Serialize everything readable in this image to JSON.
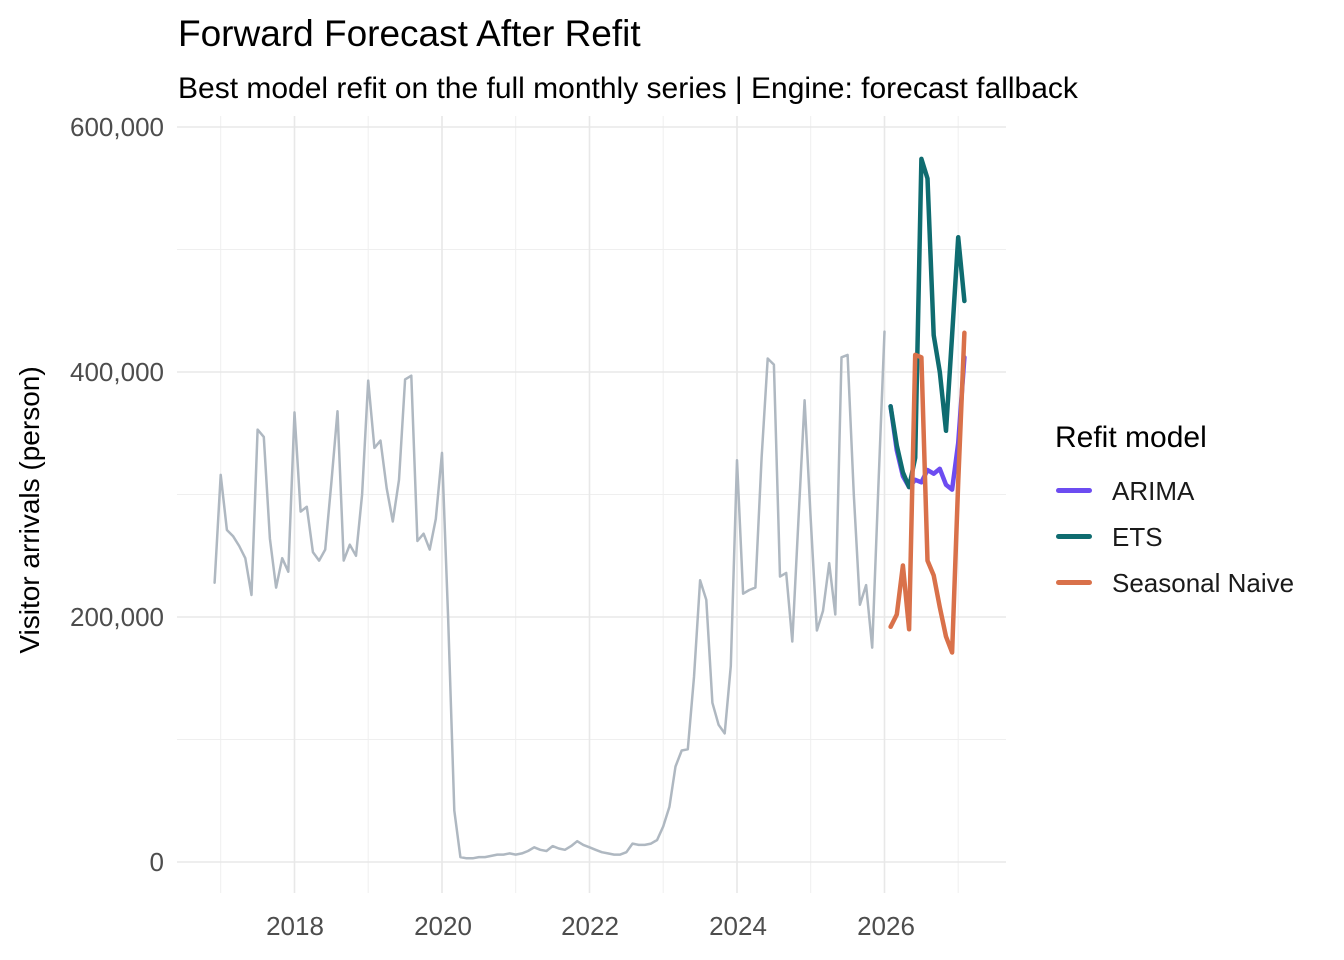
{
  "title": "Forward Forecast After Refit",
  "subtitle": "Best model refit on the full monthly series | Engine: forecast fallback",
  "y_axis": {
    "label": "Visitor arrivals (person)",
    "tick_labels": [
      "600,000",
      "400,000",
      "200,000",
      "0"
    ]
  },
  "x_axis": {
    "tick_labels": [
      "2018",
      "2020",
      "2022",
      "2024",
      "2026"
    ]
  },
  "legend": {
    "title": "Refit model",
    "entries": [
      {
        "label": "ARIMA",
        "color": "#6C4CF1"
      },
      {
        "label": "ETS",
        "color": "#0F6C70"
      },
      {
        "label": "Seasonal Naive",
        "color": "#D9714A"
      }
    ]
  },
  "chart_data": {
    "type": "line",
    "title": "Forward Forecast After Refit",
    "subtitle": "Best model refit on the full monthly series | Engine: forecast fallback",
    "xlabel": "",
    "ylabel": "Visitor arrivals (person)",
    "frequency": "monthly",
    "grid": true,
    "legend_position": "right",
    "x_ticks": [
      2018,
      2020,
      2022,
      2024,
      2026
    ],
    "x_minor_ticks": [
      2017,
      2019,
      2021,
      2023,
      2025,
      2027
    ],
    "y_ticks": [
      0,
      200000,
      400000,
      600000
    ],
    "y_minor_ticks": [
      100000,
      300000,
      500000
    ],
    "ylim": [
      0,
      620000
    ],
    "series": [
      {
        "name": "Historical monthly series",
        "role": "history",
        "color": "#AFB8C1",
        "start_month": "2016-12",
        "values_person": [
          228000,
          316000,
          271000,
          266000,
          258000,
          248000,
          218000,
          353000,
          347000,
          264000,
          224000,
          248000,
          237000,
          367000,
          286000,
          290000,
          253000,
          246000,
          255000,
          310000,
          368000,
          246000,
          259000,
          250000,
          300000,
          393000,
          338000,
          344000,
          305000,
          278000,
          312000,
          394000,
          397000,
          262000,
          268000,
          255000,
          280000,
          334000,
          200000,
          42000,
          4000,
          3000,
          3000,
          4000,
          4000,
          5000,
          6000,
          6000,
          7000,
          6000,
          7000,
          9000,
          12000,
          10000,
          9000,
          13000,
          11000,
          10000,
          13000,
          17000,
          14000,
          12000,
          10000,
          8000,
          7000,
          6000,
          6000,
          8000,
          15000,
          14000,
          14000,
          15000,
          18000,
          29000,
          45000,
          78000,
          91000,
          92000,
          151000,
          230000,
          214000,
          130000,
          112000,
          105000,
          160000,
          328000,
          219000,
          222000,
          224000,
          330000,
          411000,
          406000,
          233000,
          236000,
          180000,
          280000,
          377000,
          280000,
          189000,
          205000,
          244000,
          202000,
          412000,
          414000,
          300000,
          210000,
          226000,
          175000,
          305000,
          433000
        ]
      },
      {
        "name": "ARIMA",
        "role": "forecast",
        "color": "#6C4CF1",
        "start_month": "2026-02",
        "values_person": [
          372000,
          336000,
          315000,
          306000,
          312000,
          310000,
          320000,
          317000,
          321000,
          308000,
          304000,
          342000,
          412000
        ]
      },
      {
        "name": "ETS",
        "role": "forecast",
        "color": "#0F6C70",
        "start_month": "2026-02",
        "values_person": [
          372000,
          340000,
          318000,
          306000,
          330000,
          574000,
          558000,
          430000,
          400000,
          352000,
          430000,
          510000,
          458000
        ]
      },
      {
        "name": "Seasonal Naive",
        "role": "forecast",
        "color": "#D9714A",
        "start_month": "2026-02",
        "values_person": [
          192000,
          202000,
          242000,
          190000,
          414000,
          412000,
          246000,
          234000,
          208000,
          184000,
          171000,
          310000,
          432000
        ]
      }
    ]
  }
}
